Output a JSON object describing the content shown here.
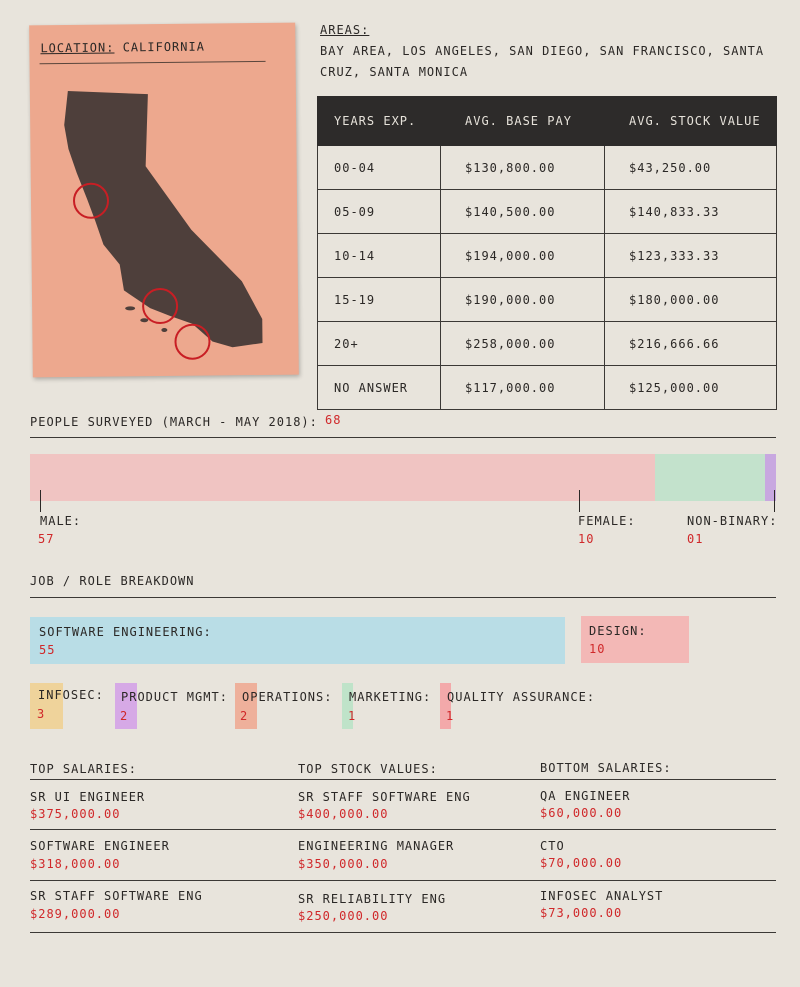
{
  "location": {
    "label": "LOCATION:",
    "value": "CALIFORNIA"
  },
  "areas": {
    "label": "AREAS:",
    "text": "BAY AREA, LOS ANGELES, SAN DIEGO, SAN FRANCISCO, SANTA CRUZ, SANTA MONICA"
  },
  "colors": {
    "male": "#f0c4c2",
    "female": "#c3e2cc",
    "nonbinary": "#c8a8e0",
    "software": "#b9dde6",
    "design": "#f3b8b6",
    "infosec": "#efd39b",
    "product": "#d6a9e6",
    "operations": "#eeb09b",
    "marketing": "#bfe3c9",
    "qa": "#f3a9aa"
  },
  "chart_data": [
    {
      "type": "table",
      "columns": [
        "YEARS EXP.",
        "AVG. BASE PAY",
        "AVG. STOCK VALUE"
      ],
      "rows": [
        [
          "00-04",
          "$130,800.00",
          "$43,250.00"
        ],
        [
          "05-09",
          "$140,500.00",
          "$140,833.33"
        ],
        [
          "10-14",
          "$194,000.00",
          "$123,333.33"
        ],
        [
          "15-19",
          "$190,000.00",
          "$180,000.00"
        ],
        [
          "20+",
          "$258,000.00",
          "$216,666.66"
        ],
        [
          "NO ANSWER",
          "$117,000.00",
          "$125,000.00"
        ]
      ]
    },
    {
      "type": "bar",
      "title": "PEOPLE SURVEYED (MARCH - MAY 2018):",
      "total": "68",
      "categories": [
        "MALE:",
        "FEMALE:",
        "NON-BINARY:"
      ],
      "values": [
        57,
        10,
        1
      ],
      "value_labels": [
        "57",
        "10",
        "01"
      ]
    },
    {
      "type": "bar",
      "title": "JOB / ROLE BREAKDOWN",
      "categories": [
        "SOFTWARE ENGINEERING:",
        "DESIGN:",
        "INFOSEC:",
        "PRODUCT MGMT:",
        "OPERATIONS:",
        "MARKETING:",
        "QUALITY ASSURANCE:"
      ],
      "values": [
        55,
        10,
        3,
        2,
        2,
        1,
        1
      ]
    }
  ],
  "salaries": {
    "top_salaries": {
      "title": "TOP SALARIES:",
      "items": [
        {
          "role": "SR UI ENGINEER",
          "value": "$375,000.00"
        },
        {
          "role": "SOFTWARE ENGINEER",
          "value": "$318,000.00"
        },
        {
          "role": "SR STAFF SOFTWARE ENG",
          "value": "$289,000.00"
        }
      ]
    },
    "top_stock": {
      "title": "TOP STOCK VALUES:",
      "items": [
        {
          "role": "SR STAFF SOFTWARE ENG",
          "value": "$400,000.00"
        },
        {
          "role": "ENGINEERING MANAGER",
          "value": "$350,000.00"
        },
        {
          "role": "SR RELIABILITY ENG",
          "value": "$250,000.00"
        }
      ]
    },
    "bottom_salaries": {
      "title": "BOTTOM SALARIES:",
      "items": [
        {
          "role": "QA ENGINEER",
          "value": "$60,000.00"
        },
        {
          "role": "CTO",
          "value": "$70,000.00"
        },
        {
          "role": "INFOSEC ANALYST",
          "value": "$73,000.00"
        }
      ]
    }
  }
}
